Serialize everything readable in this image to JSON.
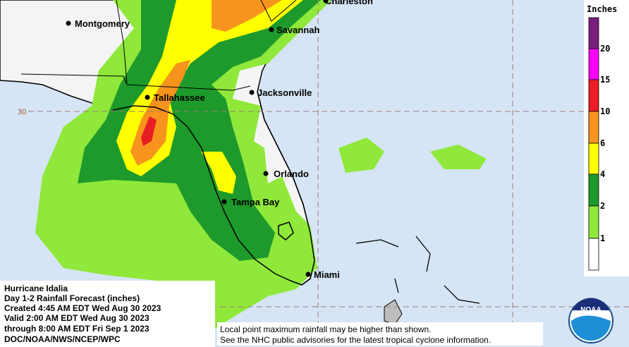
{
  "legend": {
    "title": "Inches",
    "levels": [
      1,
      2,
      4,
      6,
      10,
      15,
      20
    ]
  },
  "cities": [
    "Charleston",
    "Montgomery",
    "Savannah",
    "Jacksonville",
    "Tallahassee",
    "Orlando",
    "Tampa Bay",
    "Miami"
  ],
  "latitude_label": "30",
  "info": {
    "lines": [
      "Hurricane Idalia",
      "Day 1-2 Rainfall Forecast (inches)",
      "Created 4:45 AM EDT Wed Aug 30 2023",
      "Valid 2:00 AM EDT Wed Aug 30 2023",
      "through 8:00 AM EDT Fri Sep 1 2023",
      "DOC/NOAA/NWS/NCEP/WPC"
    ]
  },
  "disclaimer": [
    "Local point maximum rainfall may be higher than shown.",
    "See the NHC public advisories for the latest tropical cyclone information."
  ],
  "logo": "NOAA"
}
